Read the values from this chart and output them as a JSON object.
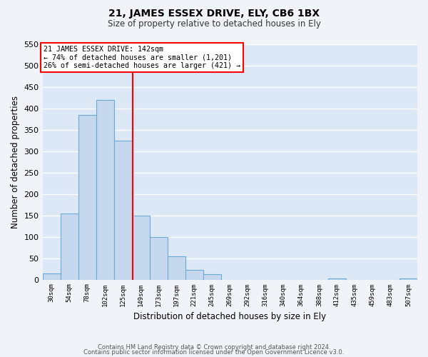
{
  "title": "21, JAMES ESSEX DRIVE, ELY, CB6 1BX",
  "subtitle": "Size of property relative to detached houses in Ely",
  "xlabel": "Distribution of detached houses by size in Ely",
  "ylabel": "Number of detached properties",
  "bar_color": "#c5d8ee",
  "bar_edge_color": "#6aaad4",
  "background_color": "#f0f4f8",
  "plot_bg_color": "#dce8f5",
  "grid_color": "#ffffff",
  "bin_labels": [
    "30sqm",
    "54sqm",
    "78sqm",
    "102sqm",
    "125sqm",
    "149sqm",
    "173sqm",
    "197sqm",
    "221sqm",
    "245sqm",
    "269sqm",
    "292sqm",
    "316sqm",
    "340sqm",
    "364sqm",
    "388sqm",
    "412sqm",
    "435sqm",
    "459sqm",
    "483sqm",
    "507sqm"
  ],
  "bar_heights": [
    15,
    155,
    385,
    420,
    325,
    150,
    100,
    55,
    22,
    13,
    0,
    0,
    0,
    0,
    0,
    0,
    3,
    0,
    0,
    0,
    3
  ],
  "ylim": [
    0,
    550
  ],
  "yticks": [
    0,
    50,
    100,
    150,
    200,
    250,
    300,
    350,
    400,
    450,
    500,
    550
  ],
  "property_line_x": 4.55,
  "property_label": "21 JAMES ESSEX DRIVE: 142sqm",
  "annotation_line1": "← 74% of detached houses are smaller (1,201)",
  "annotation_line2": "26% of semi-detached houses are larger (421) →",
  "footer_line1": "Contains HM Land Registry data © Crown copyright and database right 2024.",
  "footer_line2": "Contains public sector information licensed under the Open Government Licence v3.0."
}
